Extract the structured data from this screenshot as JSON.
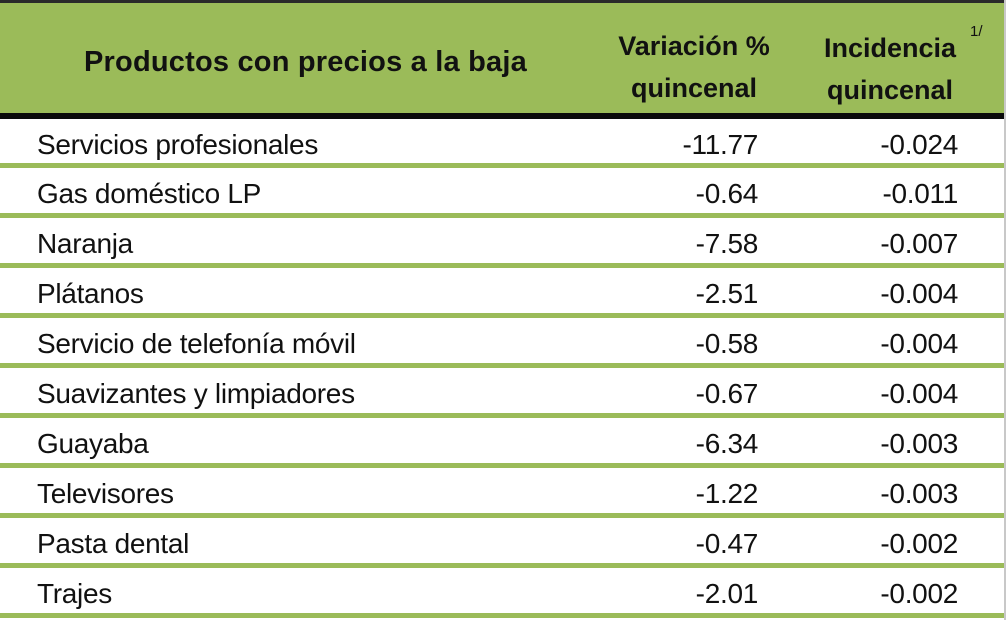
{
  "header": {
    "product_col": "Productos con precios a la baja",
    "variation_col_line1": "Variación %",
    "variation_col_line2": "quincenal",
    "incidence_col_line1": "Incidencia",
    "incidence_col_line2": "quincenal",
    "incidence_footnote": "1/"
  },
  "colors": {
    "header_bg": "#9bbb59",
    "separator": "#9bbb59",
    "header_rule": "#0a0a0a"
  },
  "rows": [
    {
      "product": "Servicios profesionales",
      "variation": "-11.77",
      "incidence": "-0.024"
    },
    {
      "product": "Gas doméstico LP",
      "variation": "-0.64",
      "incidence": "-0.011"
    },
    {
      "product": "Naranja",
      "variation": "-7.58",
      "incidence": "-0.007"
    },
    {
      "product": "Plátanos",
      "variation": "-2.51",
      "incidence": "-0.004"
    },
    {
      "product": "Servicio de telefonía móvil",
      "variation": "-0.58",
      "incidence": "-0.004"
    },
    {
      "product": "Suavizantes y limpiadores",
      "variation": "-0.67",
      "incidence": "-0.004"
    },
    {
      "product": "Guayaba",
      "variation": "-6.34",
      "incidence": "-0.003"
    },
    {
      "product": "Televisores",
      "variation": "-1.22",
      "incidence": "-0.003"
    },
    {
      "product": "Pasta dental",
      "variation": "-0.47",
      "incidence": "-0.002"
    },
    {
      "product": "Trajes",
      "variation": "-2.01",
      "incidence": "-0.002"
    }
  ]
}
